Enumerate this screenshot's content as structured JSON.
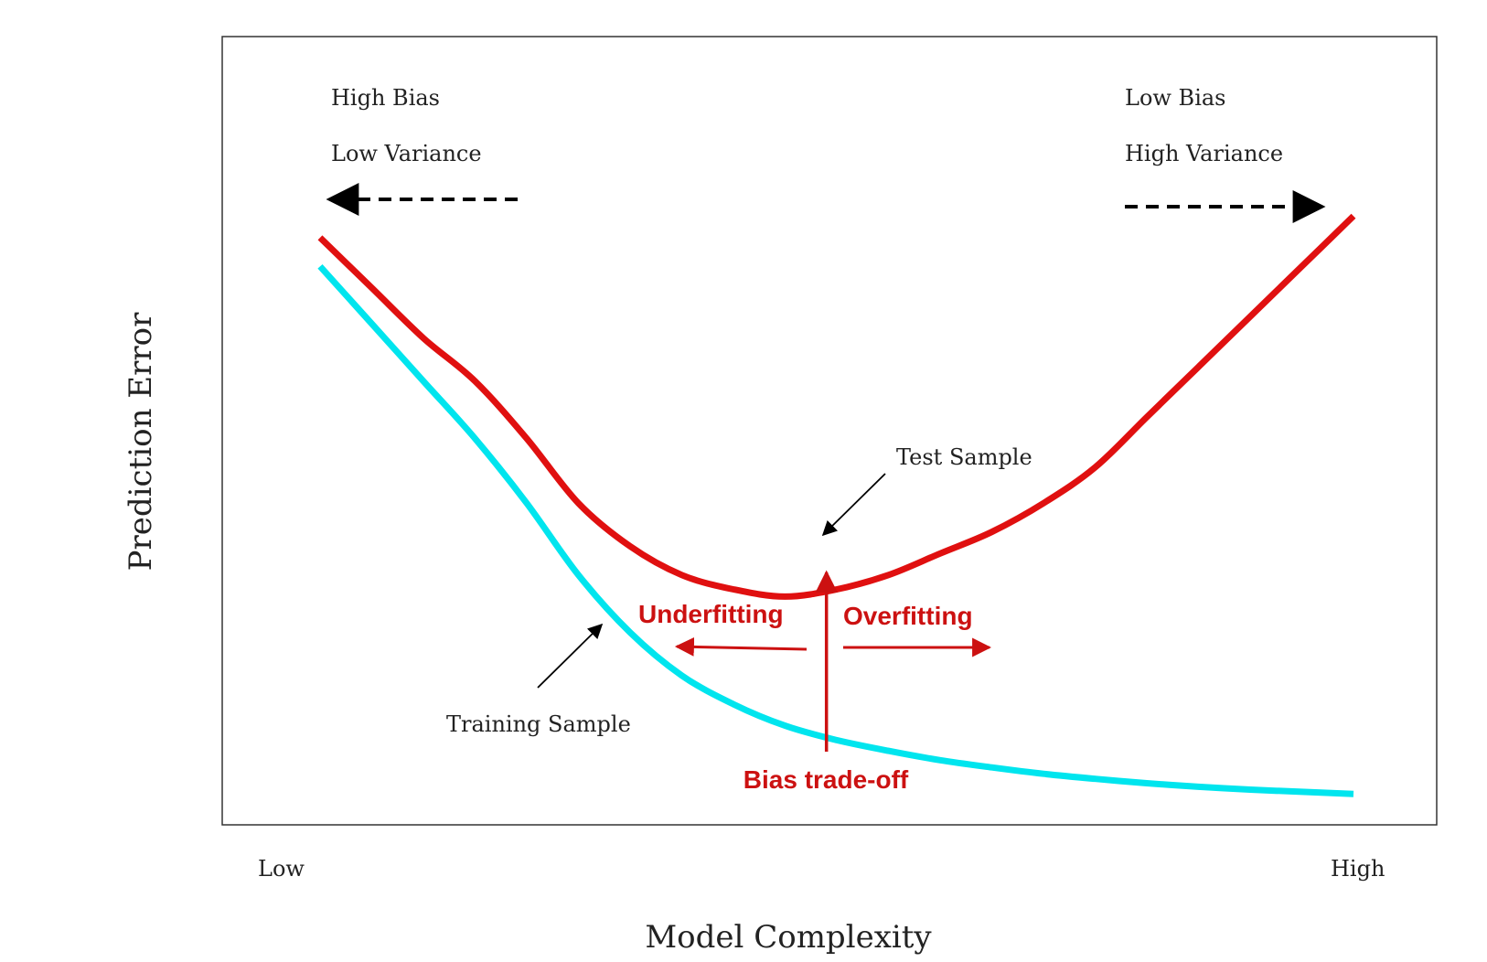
{
  "chart_data": {
    "type": "line",
    "xlabel": "Model Complexity",
    "ylabel": "Prediction Error",
    "x_tick_labels": {
      "low": "Low",
      "high": "High"
    },
    "xlim": [
      0,
      1
    ],
    "ylim": [
      0,
      1
    ],
    "grid": false,
    "series": [
      {
        "name": "Test Sample",
        "color": "#e01010",
        "x": [
          0.0,
          0.05,
          0.1,
          0.15,
          0.2,
          0.25,
          0.3,
          0.35,
          0.4,
          0.45,
          0.5,
          0.55,
          0.6,
          0.65,
          0.7,
          0.75,
          0.8,
          0.85,
          0.9,
          0.95,
          1.0
        ],
        "y": [
          0.79,
          0.72,
          0.65,
          0.59,
          0.51,
          0.42,
          0.36,
          0.32,
          0.3,
          0.29,
          0.3,
          0.32,
          0.35,
          0.38,
          0.42,
          0.47,
          0.54,
          0.61,
          0.68,
          0.75,
          0.82
        ]
      },
      {
        "name": "Training Sample",
        "color": "#00e5ee",
        "x": [
          0.0,
          0.05,
          0.1,
          0.15,
          0.2,
          0.25,
          0.3,
          0.35,
          0.4,
          0.45,
          0.5,
          0.55,
          0.6,
          0.65,
          0.7,
          0.75,
          0.8,
          0.85,
          0.9,
          0.95,
          1.0
        ],
        "y": [
          0.75,
          0.67,
          0.59,
          0.51,
          0.42,
          0.32,
          0.24,
          0.18,
          0.14,
          0.11,
          0.09,
          0.075,
          0.062,
          0.052,
          0.043,
          0.036,
          0.03,
          0.025,
          0.021,
          0.018,
          0.015
        ]
      }
    ],
    "annotations": {
      "top_left_line1": "High Bias",
      "top_left_line2": "Low Variance",
      "top_right_line1": "Low Bias",
      "top_right_line2": "High Variance",
      "test_label": "Test Sample",
      "training_label": "Training Sample",
      "underfitting": "Underfitting",
      "overfitting": "Overfitting",
      "tradeoff": "Bias trade-off",
      "tradeoff_x": 0.49,
      "annotation_color": "#cc1111"
    }
  }
}
